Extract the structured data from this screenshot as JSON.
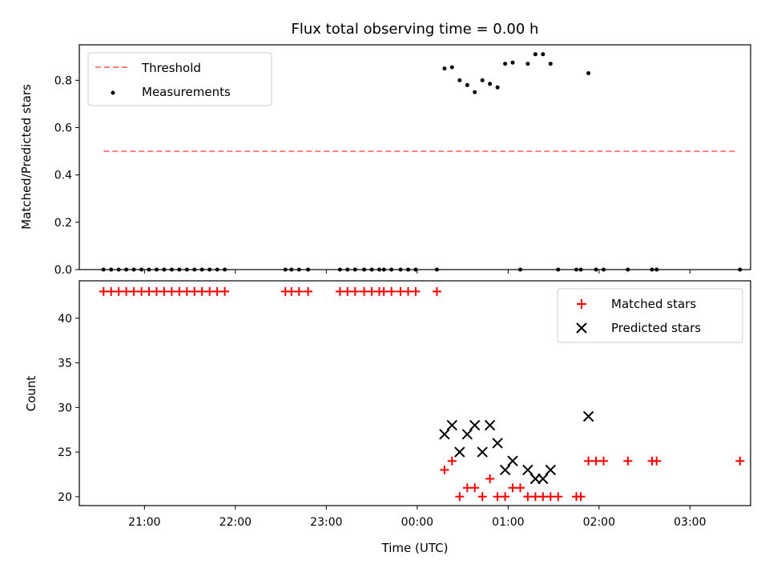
{
  "chart_data": [
    {
      "type": "scatter",
      "title": "Flux total observing time = 0.00 h",
      "xlabel": "",
      "ylabel": "Matched/Predicted stars",
      "xlim": [
        "20:17",
        "03:40"
      ],
      "ylim": [
        0,
        0.95
      ],
      "yticks": [
        0.0,
        0.2,
        0.4,
        0.6,
        0.8
      ],
      "ytick_labels": [
        "0.0",
        "0.2",
        "0.4",
        "0.6",
        "0.8"
      ],
      "legend_position": "top-left",
      "series": [
        {
          "name": "Threshold",
          "kind": "line",
          "style": "dashed",
          "color": "#ff7f7f",
          "points": [
            [
              "20:33",
              0.5
            ],
            [
              "03:31",
              0.5
            ]
          ]
        },
        {
          "name": "Measurements",
          "kind": "scatter",
          "marker": "dot",
          "color": "#000000",
          "points": [
            [
              "20:33",
              0
            ],
            [
              "20:38",
              0
            ],
            [
              "20:43",
              0
            ],
            [
              "20:48",
              0
            ],
            [
              "20:53",
              0
            ],
            [
              "20:58",
              0
            ],
            [
              "21:03",
              0
            ],
            [
              "21:08",
              0
            ],
            [
              "21:13",
              0
            ],
            [
              "21:18",
              0
            ],
            [
              "21:23",
              0
            ],
            [
              "21:28",
              0
            ],
            [
              "21:33",
              0
            ],
            [
              "21:38",
              0
            ],
            [
              "21:43",
              0
            ],
            [
              "21:48",
              0
            ],
            [
              "21:53",
              0
            ],
            [
              "22:33",
              0
            ],
            [
              "22:37",
              0
            ],
            [
              "22:42",
              0
            ],
            [
              "22:48",
              0
            ],
            [
              "23:09",
              0
            ],
            [
              "23:14",
              0
            ],
            [
              "23:19",
              0
            ],
            [
              "23:25",
              0
            ],
            [
              "23:30",
              0
            ],
            [
              "23:35",
              0
            ],
            [
              "23:38",
              0
            ],
            [
              "23:43",
              0
            ],
            [
              "23:49",
              0
            ],
            [
              "23:54",
              0
            ],
            [
              "23:59",
              0
            ],
            [
              "00:13",
              0
            ],
            [
              "00:18",
              0.85
            ],
            [
              "00:23",
              0.855
            ],
            [
              "00:28",
              0.8
            ],
            [
              "00:33",
              0.78
            ],
            [
              "00:38",
              0.75
            ],
            [
              "00:43",
              0.8
            ],
            [
              "00:48",
              0.785
            ],
            [
              "00:53",
              0.77
            ],
            [
              "00:58",
              0.87
            ],
            [
              "01:03",
              0.875
            ],
            [
              "01:08",
              0
            ],
            [
              "01:13",
              0.87
            ],
            [
              "01:18",
              0.91
            ],
            [
              "01:23",
              0.91
            ],
            [
              "01:28",
              0.87
            ],
            [
              "01:33",
              0
            ],
            [
              "01:45",
              0
            ],
            [
              "01:48",
              0
            ],
            [
              "01:53",
              0.83
            ],
            [
              "01:58",
              0
            ],
            [
              "02:03",
              0
            ],
            [
              "02:19",
              0
            ],
            [
              "02:35",
              0
            ],
            [
              "02:38",
              0
            ],
            [
              "03:33",
              0
            ]
          ]
        }
      ]
    },
    {
      "type": "scatter",
      "title": "",
      "xlabel": "Time (UTC)",
      "ylabel": "Count",
      "xlim": [
        "20:17",
        "03:40"
      ],
      "ylim": [
        19,
        44.2
      ],
      "yticks": [
        20,
        25,
        30,
        35,
        40
      ],
      "ytick_labels": [
        "20",
        "25",
        "30",
        "35",
        "40"
      ],
      "xticks": [
        "21:00",
        "22:00",
        "23:00",
        "00:00",
        "01:00",
        "02:00",
        "03:00"
      ],
      "legend_position": "top-right",
      "series": [
        {
          "name": "Matched stars",
          "kind": "scatter",
          "marker": "plus",
          "color": "#ff0000",
          "points": [
            [
              "20:33",
              43
            ],
            [
              "20:38",
              43
            ],
            [
              "20:43",
              43
            ],
            [
              "20:48",
              43
            ],
            [
              "20:53",
              43
            ],
            [
              "20:58",
              43
            ],
            [
              "21:03",
              43
            ],
            [
              "21:08",
              43
            ],
            [
              "21:13",
              43
            ],
            [
              "21:18",
              43
            ],
            [
              "21:23",
              43
            ],
            [
              "21:28",
              43
            ],
            [
              "21:33",
              43
            ],
            [
              "21:38",
              43
            ],
            [
              "21:43",
              43
            ],
            [
              "21:48",
              43
            ],
            [
              "21:53",
              43
            ],
            [
              "22:33",
              43
            ],
            [
              "22:37",
              43
            ],
            [
              "22:42",
              43
            ],
            [
              "22:48",
              43
            ],
            [
              "23:09",
              43
            ],
            [
              "23:14",
              43
            ],
            [
              "23:19",
              43
            ],
            [
              "23:25",
              43
            ],
            [
              "23:30",
              43
            ],
            [
              "23:35",
              43
            ],
            [
              "23:38",
              43
            ],
            [
              "23:43",
              43
            ],
            [
              "23:49",
              43
            ],
            [
              "23:54",
              43
            ],
            [
              "23:59",
              43
            ],
            [
              "00:13",
              43
            ],
            [
              "00:18",
              23
            ],
            [
              "00:23",
              24
            ],
            [
              "00:28",
              20
            ],
            [
              "00:33",
              21
            ],
            [
              "00:38",
              21
            ],
            [
              "00:43",
              20
            ],
            [
              "00:48",
              22
            ],
            [
              "00:53",
              20
            ],
            [
              "00:58",
              20
            ],
            [
              "01:03",
              21
            ],
            [
              "01:08",
              21
            ],
            [
              "01:13",
              20
            ],
            [
              "01:18",
              20
            ],
            [
              "01:23",
              20
            ],
            [
              "01:28",
              20
            ],
            [
              "01:33",
              20
            ],
            [
              "01:45",
              20
            ],
            [
              "01:48",
              20
            ],
            [
              "01:53",
              24
            ],
            [
              "01:58",
              24
            ],
            [
              "02:03",
              24
            ],
            [
              "02:19",
              24
            ],
            [
              "02:35",
              24
            ],
            [
              "02:38",
              24
            ],
            [
              "03:33",
              24
            ]
          ]
        },
        {
          "name": "Predicted stars",
          "kind": "scatter",
          "marker": "x",
          "color": "#000000",
          "points": [
            [
              "00:18",
              27
            ],
            [
              "00:23",
              28
            ],
            [
              "00:28",
              25
            ],
            [
              "00:33",
              27
            ],
            [
              "00:38",
              28
            ],
            [
              "00:43",
              25
            ],
            [
              "00:48",
              28
            ],
            [
              "00:53",
              26
            ],
            [
              "00:58",
              23
            ],
            [
              "01:03",
              24
            ],
            [
              "01:13",
              23
            ],
            [
              "01:18",
              22
            ],
            [
              "01:23",
              22
            ],
            [
              "01:28",
              23
            ],
            [
              "01:53",
              29
            ]
          ]
        }
      ]
    }
  ]
}
